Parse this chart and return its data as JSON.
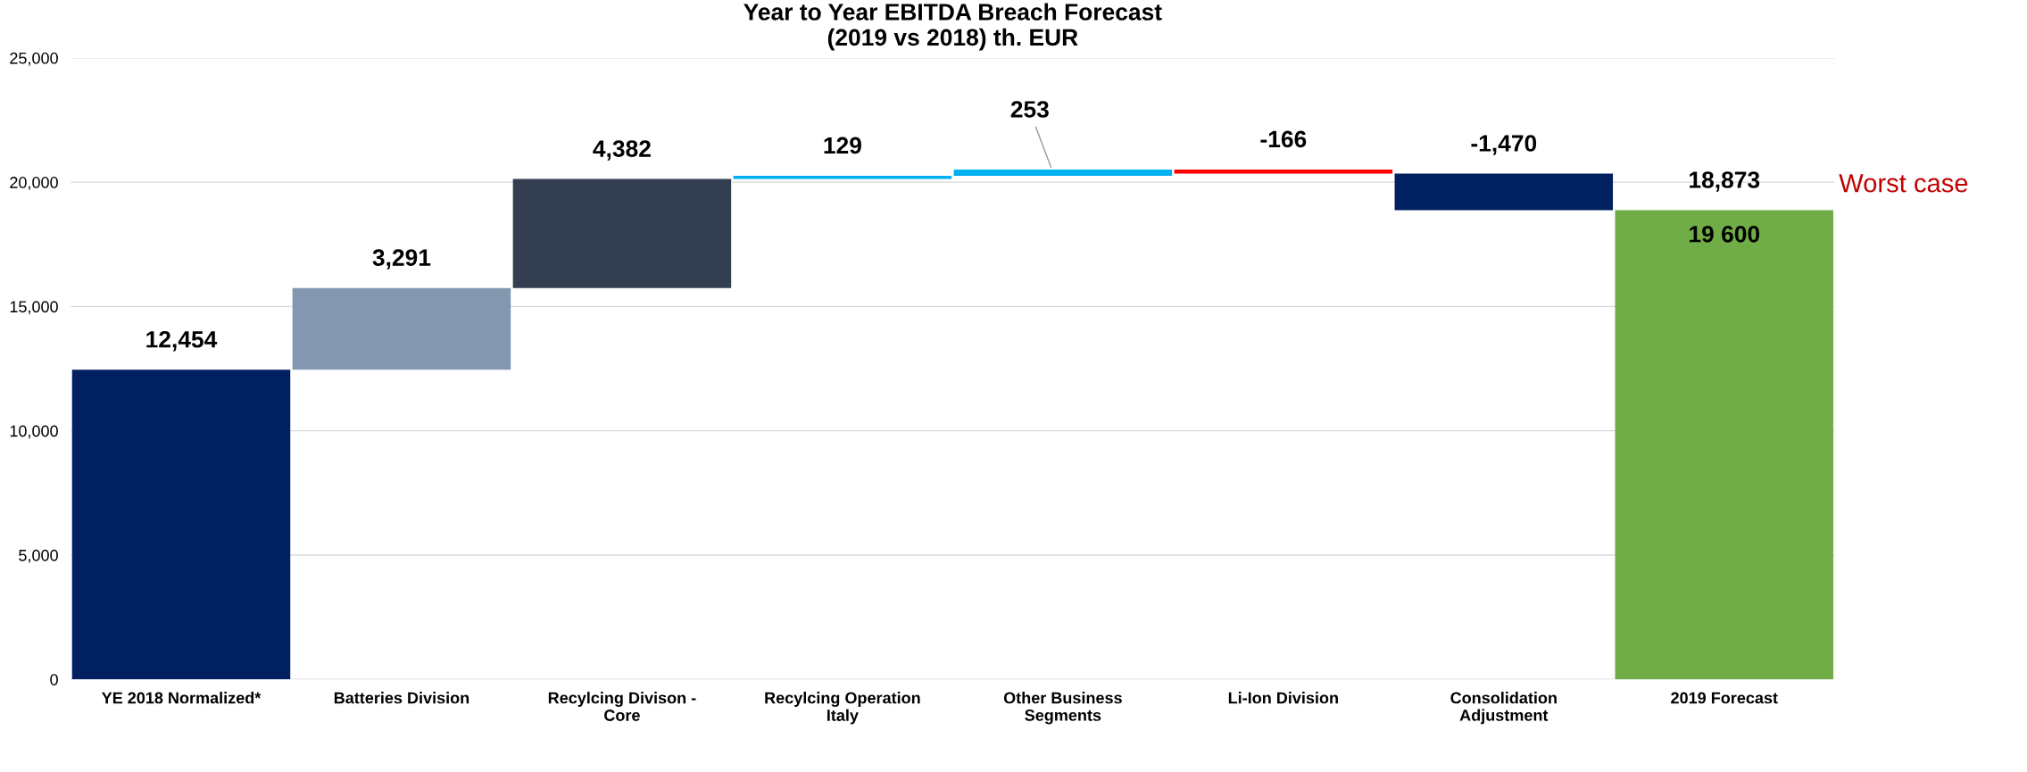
{
  "chart_data": {
    "type": "bar",
    "title": "Year to Year EBITDA Breach Forecast\n(2019 vs 2018) th. EUR",
    "categories": [
      "YE 2018 Normalized*",
      "Batteries Division",
      "Recylcing Divison -\nCore",
      "Recylcing Operation\nItaly",
      "Other Business\nSegments",
      "Li-Ion Division",
      "Consolidation\nAdjustment",
      "2019 Forecast"
    ],
    "values": [
      12454,
      3291,
      4382,
      129,
      253,
      -166,
      -1470,
      18873
    ],
    "base": [
      0,
      12454,
      15745,
      20127,
      20256,
      20509,
      20343,
      0
    ],
    "colors": [
      "#002060",
      "#8497b0",
      "#333f50",
      "#00b0f0",
      "#00b0f0",
      "#ff0000",
      "#002060",
      "#70ad47"
    ],
    "value_labels": [
      "12,454",
      "3,291",
      "4,382",
      "129",
      "253",
      "-166",
      "-1,470",
      "18,873"
    ],
    "annotations": [
      "19 600",
      "Worst case"
    ],
    "ylim": [
      0,
      25000
    ],
    "yticks": [
      0,
      {
        "value": 5000,
        "label": "5,000"
      },
      {
        "value": 10000,
        "label": "10,000"
      },
      {
        "value": 15000,
        "label": "15,000"
      },
      {
        "value": 20000,
        "label": "20,000"
      },
      {
        "value": 25000,
        "label": "25,000"
      }
    ],
    "grid": "y"
  }
}
